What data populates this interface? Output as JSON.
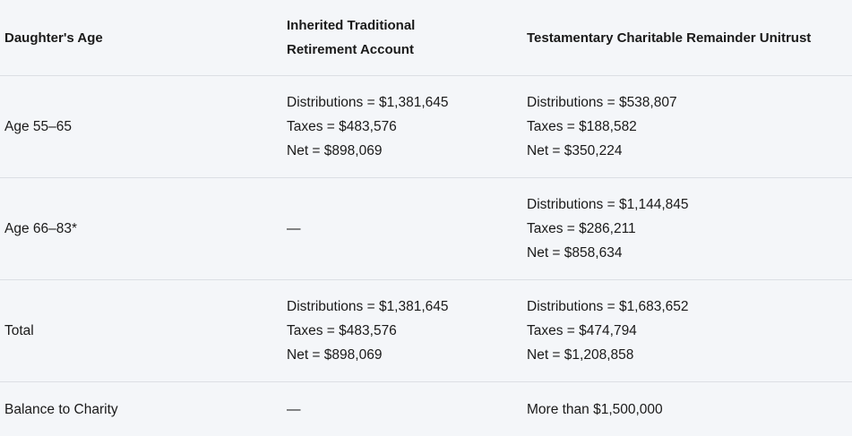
{
  "table": {
    "headers": {
      "col1": "Daughter's Age",
      "col2_line1": "Inherited Traditional",
      "col2_line2": "Retirement Account",
      "col3": "Testamentary Charitable Remainder Unitrust"
    },
    "rows": [
      {
        "age": "Age 55–65",
        "ira": {
          "distributions": "Distributions = $1,381,645",
          "taxes": "Taxes = $483,576",
          "net": "Net = $898,069"
        },
        "crut": {
          "distributions": "Distributions = $538,807",
          "taxes": "Taxes = $188,582",
          "net": "Net = $350,224"
        }
      },
      {
        "age": "Age 66–83*",
        "ira_dash": "—",
        "crut": {
          "distributions": "Distributions = $1,144,845",
          "taxes": "Taxes = $286,211",
          "net": "Net = $858,634"
        }
      },
      {
        "age": "Total",
        "ira": {
          "distributions": "Distributions = $1,381,645",
          "taxes": "Taxes = $483,576",
          "net": "Net = $898,069"
        },
        "crut": {
          "distributions": "Distributions = $1,683,652",
          "taxes": "Taxes = $474,794",
          "net": "Net = $1,208,858"
        }
      },
      {
        "age": "Balance to Charity",
        "ira_dash": "—",
        "crut_text": "More than $1,500,000"
      }
    ]
  }
}
